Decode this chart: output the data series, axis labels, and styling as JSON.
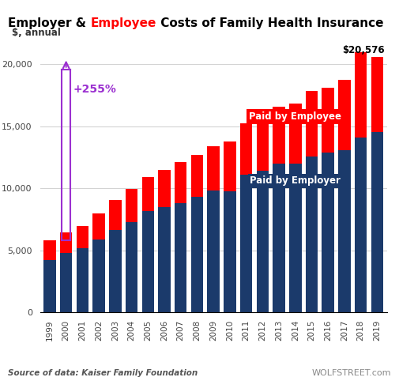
{
  "years": [
    1999,
    2000,
    2001,
    2002,
    2003,
    2004,
    2005,
    2006,
    2007,
    2008,
    2009,
    2010,
    2011,
    2012,
    2013,
    2014,
    2015,
    2016,
    2017,
    2018,
    2019
  ],
  "employer": [
    4247,
    4819,
    5151,
    5866,
    6656,
    7289,
    8167,
    8508,
    8824,
    9325,
    9860,
    9773,
    11129,
    11429,
    12011,
    12011,
    12591,
    12865,
    13049,
    14069,
    14561
  ],
  "employee": [
    1543,
    1619,
    1787,
    2084,
    2412,
    2661,
    2713,
    2973,
    3281,
    3354,
    3515,
    3997,
    4129,
    4316,
    4565,
    4823,
    5277,
    5277,
    5714,
    6896,
    6015
  ],
  "total_2019": 20576,
  "employer_color": "#1b3a6b",
  "employee_color": "#ff0000",
  "ylabel": "$, annual",
  "ylim": [
    0,
    21500
  ],
  "yticks": [
    0,
    5000,
    10000,
    15000,
    20000
  ],
  "annotation_text": "+255%",
  "annotation_color": "#9b30d0",
  "source_text": "Source of data: Kaiser Family Foundation",
  "watermark_text": "WOLFSTREET.com",
  "label_employer": "Paid by Employer",
  "label_employee": "Paid by Employee"
}
